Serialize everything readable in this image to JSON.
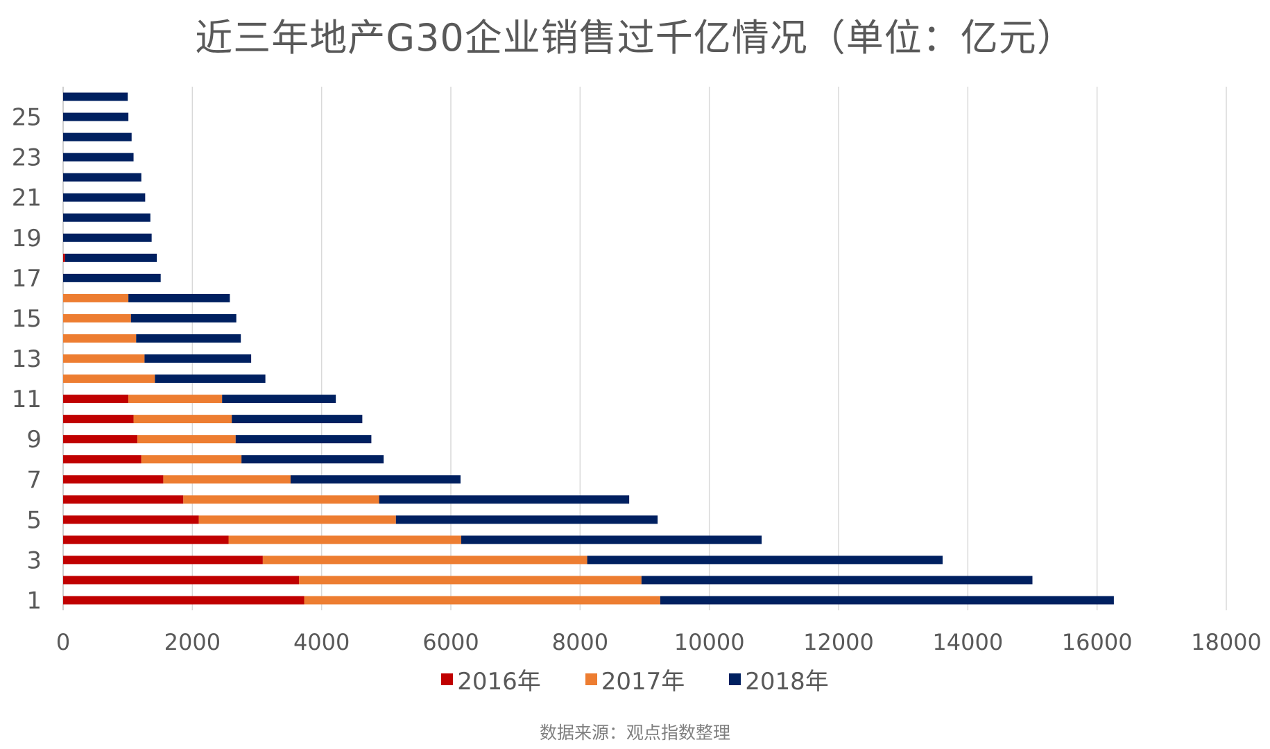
{
  "chart_data": {
    "type": "bar",
    "orientation": "horizontal",
    "stacked": true,
    "title": "近三年地产G30企业销售过千亿情况（单位：亿元）",
    "xlim": [
      0,
      18000
    ],
    "x_ticks": [
      "0",
      "2000",
      "4000",
      "6000",
      "8000",
      "10000",
      "12000",
      "14000",
      "16000",
      "18000"
    ],
    "categories": [
      "1",
      "2",
      "3",
      "4",
      "5",
      "6",
      "7",
      "8",
      "9",
      "10",
      "11",
      "12",
      "13",
      "14",
      "15",
      "16",
      "17",
      "18",
      "19",
      "20",
      "21",
      "22",
      "23",
      "24",
      "25",
      "26"
    ],
    "y_tick_labels": [
      "1",
      "3",
      "5",
      "7",
      "9",
      "11",
      "13",
      "15",
      "17",
      "19",
      "21",
      "23",
      "25"
    ],
    "grid": true,
    "legend_position": "bottom",
    "series": [
      {
        "name": "2016年",
        "color": "#C00000",
        "values": [
          3730,
          3650,
          3090,
          2560,
          2100,
          1860,
          1550,
          1210,
          1150,
          1090,
          1010,
          0,
          0,
          0,
          0,
          0,
          0,
          30,
          0,
          0,
          0,
          0,
          0,
          0,
          0,
          0
        ]
      },
      {
        "name": "2017年",
        "color": "#ED7D31",
        "values": [
          5510,
          5300,
          5020,
          3600,
          3050,
          3030,
          1970,
          1550,
          1520,
          1520,
          1450,
          1420,
          1260,
          1130,
          1050,
          1010,
          0,
          0,
          0,
          0,
          0,
          0,
          0,
          0,
          0,
          0
        ]
      },
      {
        "name": "2018年",
        "color": "#002060",
        "values": [
          7020,
          6050,
          5500,
          4650,
          4050,
          3870,
          2630,
          2200,
          2100,
          2020,
          1760,
          1710,
          1650,
          1620,
          1630,
          1570,
          1510,
          1420,
          1370,
          1350,
          1270,
          1210,
          1090,
          1060,
          1010,
          1000
        ]
      }
    ]
  },
  "source_note": "数据来源：观点指数整理"
}
